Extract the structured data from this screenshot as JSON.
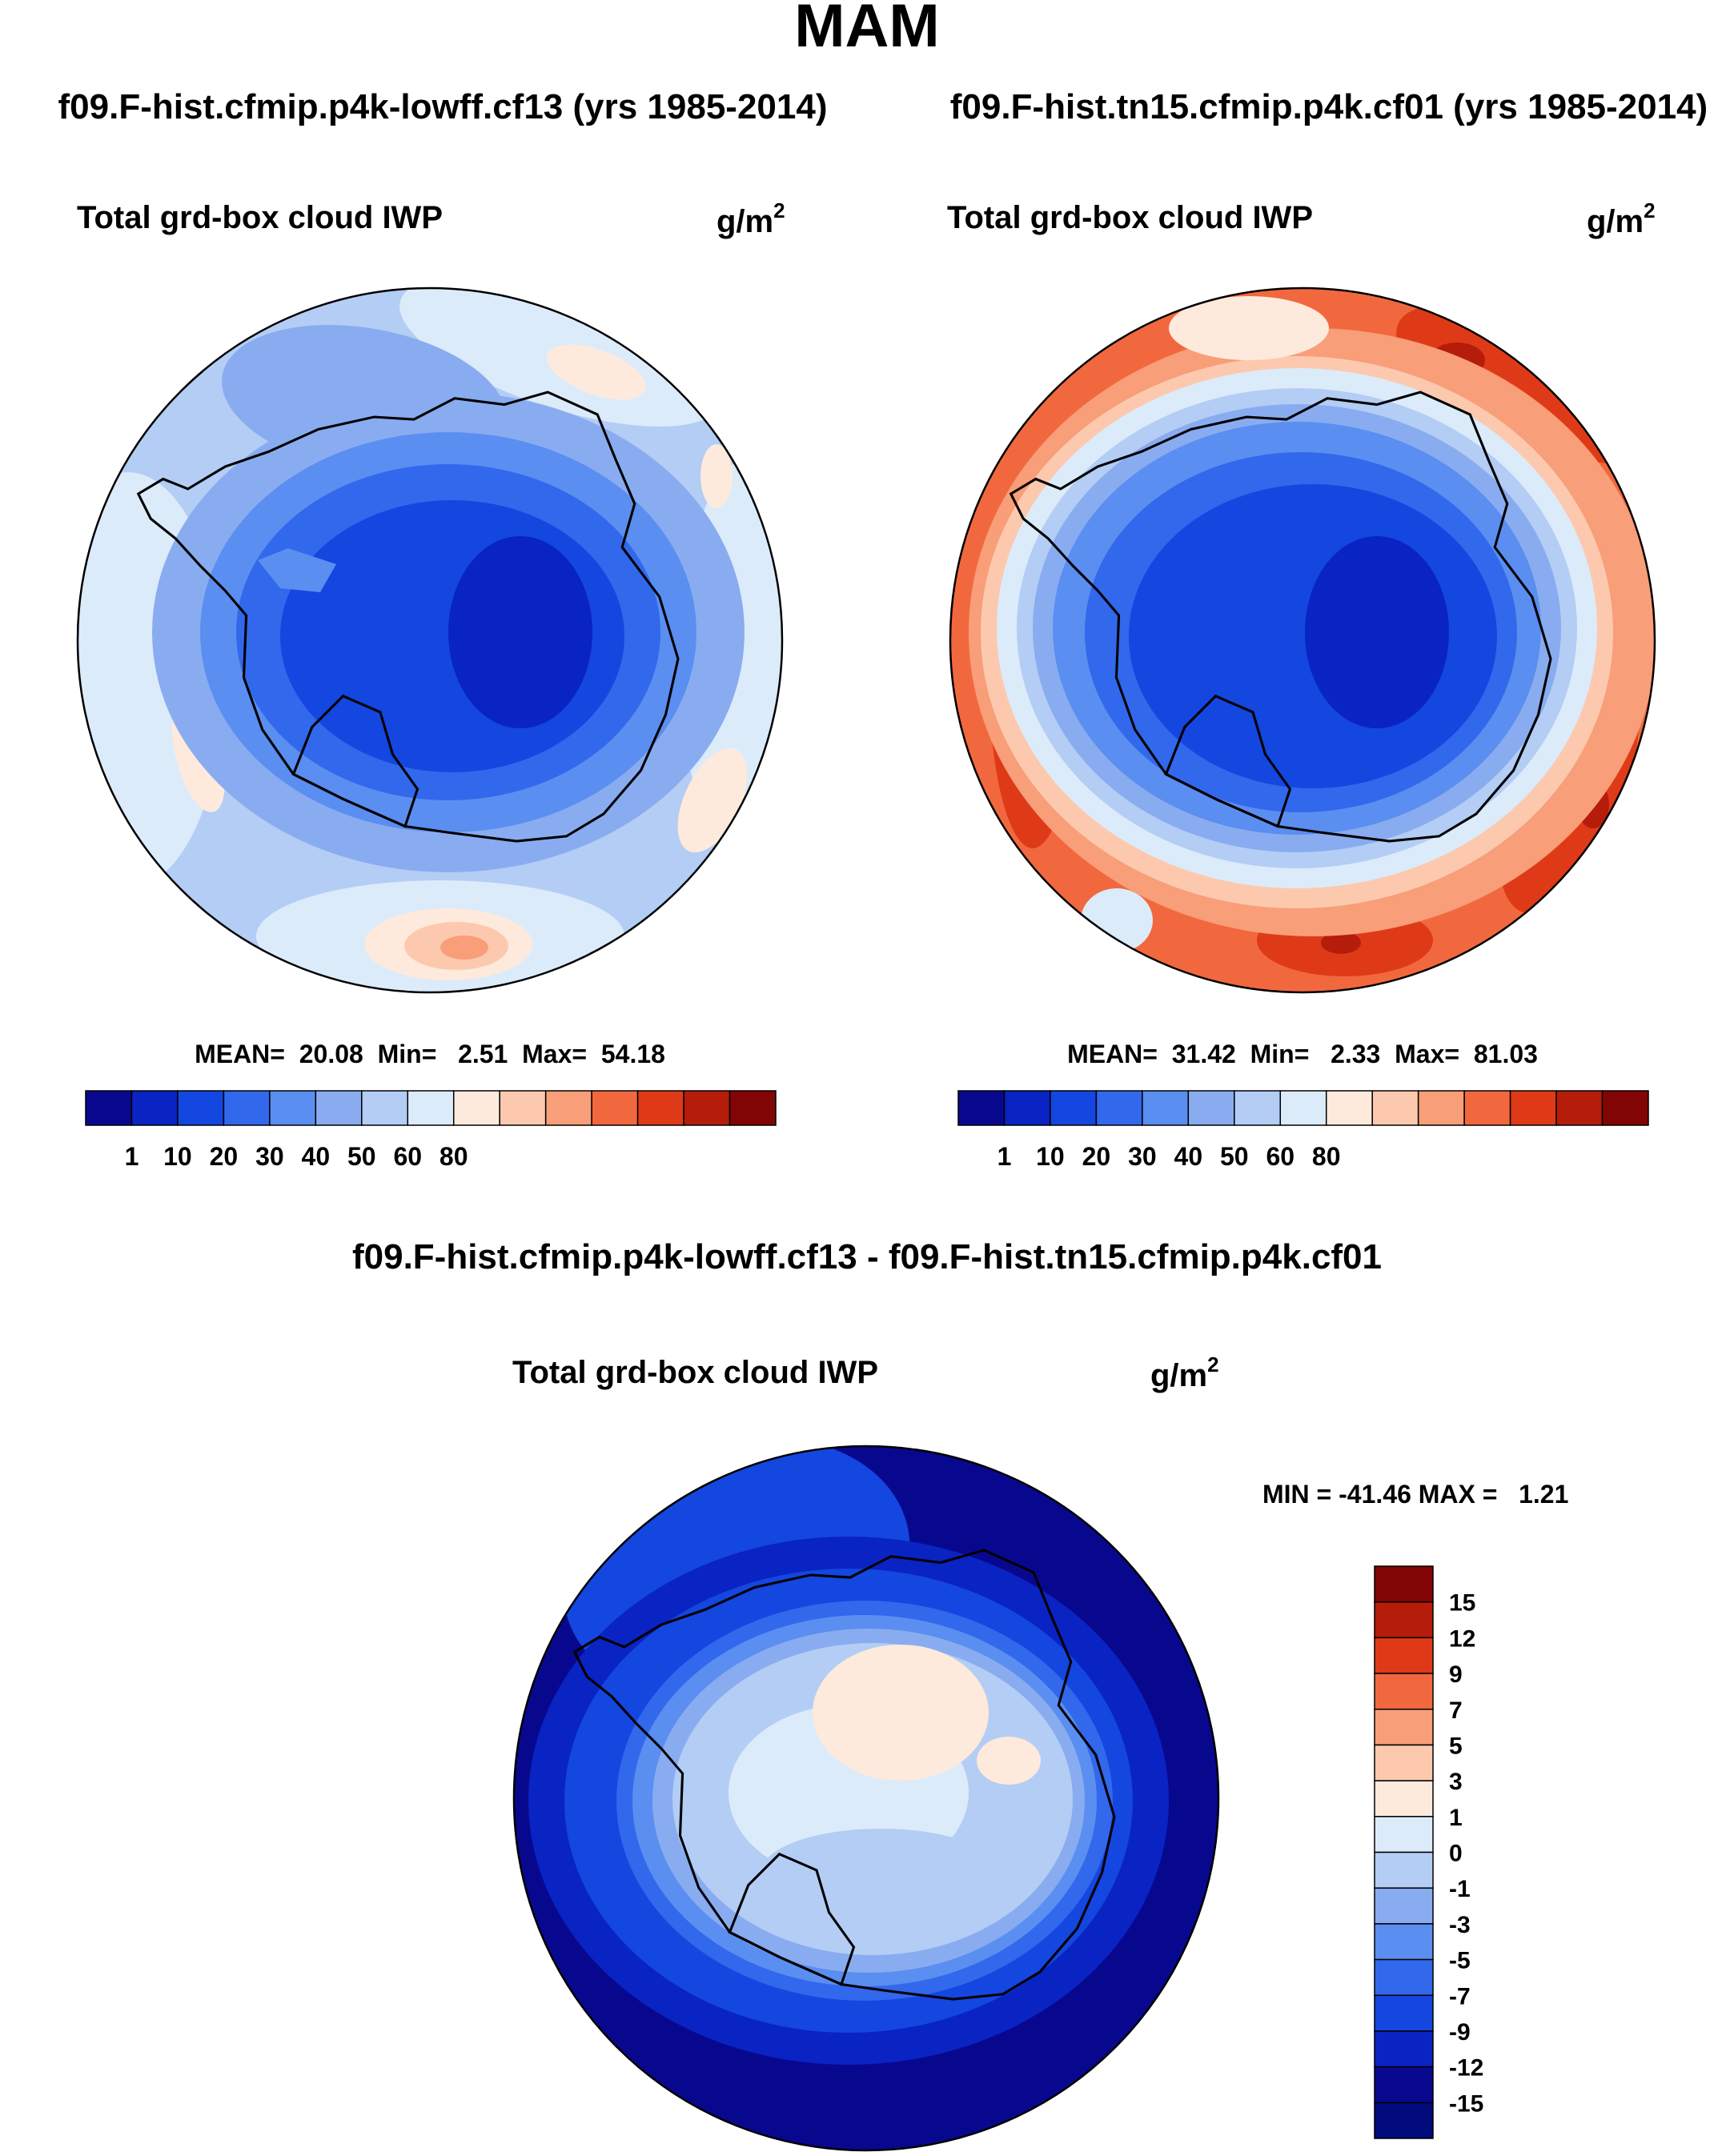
{
  "page": {
    "season": "MAM",
    "case1_header": "f09.F-hist.cfmip.p4k-lowff.cf13 (yrs 1985-2014)",
    "case2_header": "f09.F-hist.tn15.cfmip.p4k.cf01 (yrs 1985-2014)",
    "diff_header": "f09.F-hist.cfmip.p4k-lowff.cf13 - f09.F-hist.tn15.cfmip.p4k.cf01"
  },
  "panels": [
    {
      "id": "case1",
      "variable": "Total grd-box cloud IWP",
      "units_base": "g/m",
      "units_exp": "2",
      "stats_text": "MEAN=  20.08  Min=   2.51  Max=  54.18",
      "stats": {
        "mean": 20.08,
        "min": 2.51,
        "max": 54.18
      }
    },
    {
      "id": "case2",
      "variable": "Total grd-box cloud IWP",
      "units_base": "g/m",
      "units_exp": "2",
      "stats_text": "MEAN=  31.42  Min=   2.33  Max=  81.03",
      "stats": {
        "mean": 31.42,
        "min": 2.33,
        "max": 81.03
      }
    },
    {
      "id": "diff",
      "variable": "Total grd-box cloud IWP",
      "units_base": "g/m",
      "units_exp": "2",
      "stats_text": "MIN = -41.46 MAX =   1.21",
      "stats": {
        "min": -41.46,
        "max": 1.21
      }
    }
  ],
  "colorbar_abs": {
    "orientation": "horizontal",
    "colors": [
      "#08088f",
      "#0a23c3",
      "#1446e0",
      "#3168ec",
      "#5a8ef0",
      "#89acf0",
      "#b3cdf5",
      "#dcebfa",
      "#fdeadc",
      "#fcc9af",
      "#f89e78",
      "#f2683e",
      "#df3a18",
      "#b51c0a",
      "#820505"
    ],
    "labels": [
      "1",
      "10",
      "20",
      "30",
      "40",
      "50",
      "60",
      "80"
    ]
  },
  "colorbar_diff": {
    "orientation": "vertical",
    "colors": [
      "#820505",
      "#b51c0a",
      "#df3a18",
      "#f2683e",
      "#f89e78",
      "#fcc9af",
      "#fdeadc",
      "#dcebfa",
      "#b3cdf5",
      "#89acf0",
      "#5a8ef0",
      "#3168ec",
      "#1446e0",
      "#0a23c3",
      "#08088f",
      "#000a7a"
    ],
    "labels": [
      "15",
      "12",
      "9",
      "7",
      "5",
      "3",
      "1",
      "0",
      "-1",
      "-3",
      "-5",
      "-7",
      "-9",
      "-12",
      "-15"
    ]
  },
  "colors": {
    "case1_base": "#b3cdf5",
    "case2_base": "#f2683e",
    "diff_base": "#08088f",
    "coastline": "#000000"
  }
}
